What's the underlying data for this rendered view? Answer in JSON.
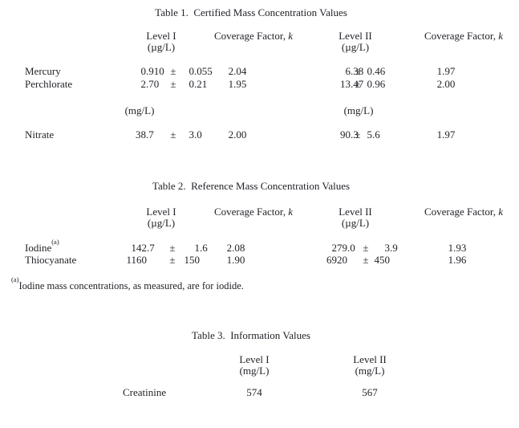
{
  "document": {
    "background": "#ffffff",
    "text_color": "#23232a"
  },
  "tables": [
    {
      "name": "table-1",
      "title": "Table 1.  Certified Mass Concentration Values",
      "headers": [
        {
          "label": "Level I",
          "sub": "(µg/L)"
        },
        {
          "label": "Coverage Factor,",
          "italic": "k"
        },
        {
          "label": "Level II",
          "sub": "(µg/L)"
        },
        {
          "label": "Coverage Factor,",
          "italic": "k"
        }
      ],
      "rows": [
        {
          "kind": "data",
          "label": "Mercury",
          "level1": "0.910",
          "pm1": "±",
          "unc1": "0.055",
          "k1": "2.04",
          "level2": "6.38",
          "pm2": "±",
          "unc2": "0.46",
          "k2": "1.97"
        },
        {
          "kind": "data",
          "label": "Perchlorate",
          "level1": "2.70",
          "pm1": "±",
          "unc1": "0.21",
          "k1": "1.95",
          "level2": "13.47",
          "pm2": "±",
          "unc2": "0.96",
          "k2": "2.00"
        },
        {
          "kind": "units",
          "unit1": "(mg/L)",
          "unit2": "(mg/L)"
        },
        {
          "kind": "data",
          "label": "Nitrate",
          "level1": "38.7",
          "pm1": "±",
          "unc1": "3.0",
          "k1": "2.00",
          "level2": "90.3",
          "pm2": "±",
          "unc2": "5.6",
          "k2": "1.97"
        }
      ]
    },
    {
      "name": "table-2",
      "title": "Table 2.  Reference Mass Concentration Values",
      "headers": [
        {
          "label": "Level I",
          "sub": "(µg/L)"
        },
        {
          "label": "Coverage Factor,",
          "italic": "k"
        },
        {
          "label": "Level II",
          "sub": "(µg/L)"
        },
        {
          "label": "Coverage Factor,",
          "italic": "k"
        }
      ],
      "rows": [
        {
          "kind": "data",
          "label": "Iodine",
          "label_sup": "(a)",
          "level1": "142.7",
          "pm1": "±",
          "unc1": "1.6",
          "k1": "2.08",
          "level2": "279.0",
          "pm2": "±",
          "unc2": "3.9",
          "k2": "1.93"
        },
        {
          "kind": "data",
          "label": "Thiocyanate",
          "level1": "1160",
          "pm1": "±",
          "unc1": "150",
          "k1": "1.90",
          "level2": "6920",
          "pm2": "±",
          "unc2": "450",
          "k2": "1.96"
        }
      ]
    },
    {
      "name": "table-3",
      "title": "Table 3.  Information Values",
      "headers": [
        {
          "label": "Level I",
          "sub": "(mg/L)"
        },
        {
          "label": "Level II",
          "sub": "(mg/L)"
        }
      ],
      "rows": [
        {
          "kind": "data",
          "label": "Creatinine",
          "level1": "574",
          "level2": "567"
        }
      ]
    }
  ],
  "footnote": {
    "sup": "(a)",
    "text": "Iodine mass concentrations, as measured, are for iodide."
  }
}
